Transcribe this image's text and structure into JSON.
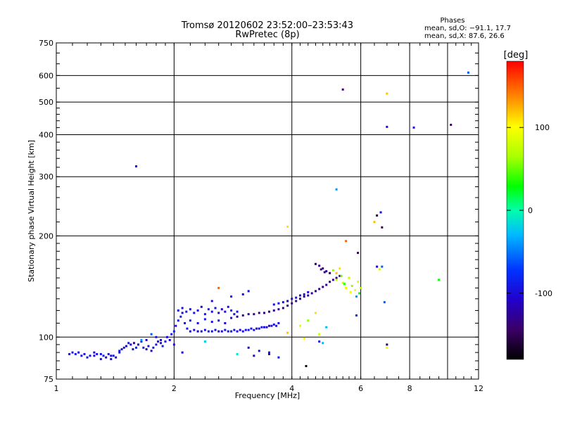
{
  "header": {
    "title_line1": "Tromsø 20120602 23:52:00–23:53:43",
    "title_line2": "RwPretec (8p)",
    "phases_title": "Phases",
    "phases_line1": "mean, sd,O: −91.1, 17.7",
    "phases_line2": "mean, sd,X:  87.6, 26.6"
  },
  "colorbar": {
    "label": "[deg]",
    "ticks": [
      {
        "label": "100",
        "value": 100
      },
      {
        "label": "0",
        "value": 0
      },
      {
        "label": "-100",
        "value": -100
      }
    ],
    "range": [
      -180,
      180
    ]
  },
  "chart_data": {
    "type": "scatter",
    "xlabel": "Frequency [MHz]",
    "ylabel": "Stationary phase Virtual Height [km]",
    "xscale": "log",
    "yscale": "log",
    "xlim": [
      1,
      12
    ],
    "ylim": [
      75,
      750
    ],
    "xticks": [
      {
        "label": "1",
        "value": 1
      },
      {
        "label": "2",
        "value": 2
      },
      {
        "label": "4",
        "value": 4
      },
      {
        "label": "6",
        "value": 6
      },
      {
        "label": "8",
        "value": 8
      },
      {
        "label": "12",
        "value": 12
      }
    ],
    "xgrid": [
      2,
      4,
      6,
      8,
      10
    ],
    "yticks": [
      {
        "label": "75",
        "value": 75
      },
      {
        "label": "100",
        "value": 100
      },
      {
        "label": "200",
        "value": 200
      },
      {
        "label": "300",
        "value": 300
      },
      {
        "label": "400",
        "value": 400
      },
      {
        "label": "500",
        "value": 500
      },
      {
        "label": "600",
        "value": 600
      },
      {
        "label": "750",
        "value": 750
      }
    ],
    "grid": true,
    "color_by": "phase [deg]",
    "points": [
      [
        1.08,
        89,
        -95
      ],
      [
        1.1,
        90,
        -100
      ],
      [
        1.12,
        89,
        -90
      ],
      [
        1.14,
        90,
        -105
      ],
      [
        1.16,
        88,
        -95
      ],
      [
        1.18,
        89,
        -100
      ],
      [
        1.2,
        87,
        -90
      ],
      [
        1.22,
        88,
        -95
      ],
      [
        1.25,
        90,
        -110
      ],
      [
        1.27,
        89,
        -100
      ],
      [
        1.3,
        86,
        -95
      ],
      [
        1.32,
        88,
        -90
      ],
      [
        1.34,
        87,
        -105
      ],
      [
        1.36,
        89,
        -95
      ],
      [
        1.38,
        86,
        -100
      ],
      [
        1.4,
        88,
        -90
      ],
      [
        1.42,
        87,
        -95
      ],
      [
        1.45,
        91,
        -85
      ],
      [
        1.47,
        92,
        -100
      ],
      [
        1.49,
        93,
        -95
      ],
      [
        1.51,
        94,
        -110
      ],
      [
        1.53,
        96,
        -90
      ],
      [
        1.55,
        95,
        -100
      ],
      [
        1.57,
        92,
        -95
      ],
      [
        1.6,
        93,
        -85
      ],
      [
        1.62,
        95,
        -100
      ],
      [
        1.65,
        97,
        -95
      ],
      [
        1.67,
        93,
        -90
      ],
      [
        1.7,
        92,
        -105
      ],
      [
        1.72,
        94,
        -95
      ],
      [
        1.75,
        91,
        -100
      ],
      [
        1.77,
        93,
        -90
      ],
      [
        1.8,
        95,
        -95
      ],
      [
        1.82,
        97,
        -105
      ],
      [
        1.85,
        96,
        -100
      ],
      [
        1.87,
        94,
        -90
      ],
      [
        1.9,
        97,
        -95
      ],
      [
        1.92,
        100,
        -100
      ],
      [
        1.95,
        98,
        -110
      ],
      [
        1.97,
        102,
        -95
      ],
      [
        2.0,
        104,
        -90
      ],
      [
        2.02,
        108,
        -100
      ],
      [
        2.05,
        112,
        -95
      ],
      [
        2.08,
        115,
        -85
      ],
      [
        2.1,
        118,
        -100
      ],
      [
        2.13,
        110,
        -95
      ],
      [
        2.16,
        106,
        -90
      ],
      [
        2.2,
        104,
        -100
      ],
      [
        2.25,
        105,
        -95
      ],
      [
        2.3,
        104,
        -110
      ],
      [
        2.35,
        104,
        -100
      ],
      [
        2.4,
        105,
        -95
      ],
      [
        2.45,
        104,
        -90
      ],
      [
        2.5,
        104,
        -100
      ],
      [
        2.55,
        105,
        -95
      ],
      [
        2.6,
        104,
        -105
      ],
      [
        2.65,
        104,
        -100
      ],
      [
        2.7,
        105,
        -95
      ],
      [
        2.75,
        104,
        -90
      ],
      [
        2.8,
        104,
        -100
      ],
      [
        2.85,
        105,
        -95
      ],
      [
        2.9,
        104,
        -100
      ],
      [
        2.95,
        105,
        -110
      ],
      [
        3.0,
        104,
        -100
      ],
      [
        3.05,
        105,
        -95
      ],
      [
        3.1,
        105,
        -90
      ],
      [
        3.15,
        106,
        -100
      ],
      [
        3.2,
        105,
        -95
      ],
      [
        3.25,
        106,
        -110
      ],
      [
        3.3,
        106,
        -100
      ],
      [
        3.35,
        107,
        -95
      ],
      [
        3.4,
        107,
        -100
      ],
      [
        3.45,
        107,
        -110
      ],
      [
        3.5,
        108,
        -100
      ],
      [
        3.55,
        108,
        -95
      ],
      [
        3.6,
        109,
        -100
      ],
      [
        3.65,
        108,
        -90
      ],
      [
        3.7,
        110,
        -100
      ],
      [
        2.05,
        120,
        -95
      ],
      [
        2.1,
        122,
        -100
      ],
      [
        2.15,
        119,
        -90
      ],
      [
        2.2,
        121,
        -100
      ],
      [
        2.25,
        118,
        -95
      ],
      [
        2.3,
        120,
        -105
      ],
      [
        2.35,
        123,
        -100
      ],
      [
        2.4,
        117,
        -95
      ],
      [
        2.45,
        121,
        -90
      ],
      [
        2.5,
        119,
        -100
      ],
      [
        2.55,
        122,
        -95
      ],
      [
        2.6,
        118,
        -100
      ],
      [
        2.65,
        121,
        -110
      ],
      [
        2.7,
        119,
        -100
      ],
      [
        2.75,
        123,
        -95
      ],
      [
        2.8,
        120,
        -90
      ],
      [
        2.85,
        117,
        -100
      ],
      [
        2.9,
        119,
        -95
      ],
      [
        2.2,
        112,
        -95
      ],
      [
        2.3,
        110,
        -100
      ],
      [
        2.4,
        113,
        -90
      ],
      [
        2.5,
        111,
        -100
      ],
      [
        2.6,
        112,
        -95
      ],
      [
        2.7,
        110,
        -105
      ],
      [
        2.8,
        114,
        -100
      ],
      [
        2.9,
        115,
        -130
      ],
      [
        3.0,
        116,
        -135
      ],
      [
        3.1,
        117,
        -130
      ],
      [
        3.2,
        117,
        -125
      ],
      [
        3.3,
        118,
        -130
      ],
      [
        3.4,
        118,
        -135
      ],
      [
        3.5,
        119,
        -130
      ],
      [
        3.6,
        120,
        -130
      ],
      [
        3.7,
        121,
        -125
      ],
      [
        3.8,
        122,
        -130
      ],
      [
        3.9,
        124,
        -130
      ],
      [
        4.0,
        126,
        -135
      ],
      [
        4.1,
        128,
        -130
      ],
      [
        4.2,
        130,
        -125
      ],
      [
        4.3,
        132,
        -130
      ],
      [
        4.4,
        133,
        -135
      ],
      [
        4.5,
        135,
        -130
      ],
      [
        4.6,
        137,
        -125
      ],
      [
        4.7,
        139,
        -130
      ],
      [
        4.8,
        141,
        -135
      ],
      [
        4.9,
        143,
        -130
      ],
      [
        5.0,
        146,
        -125
      ],
      [
        5.1,
        148,
        -130
      ],
      [
        5.2,
        150,
        -130
      ],
      [
        5.3,
        152,
        -135
      ],
      [
        3.6,
        125,
        -100
      ],
      [
        3.7,
        126,
        -95
      ],
      [
        3.8,
        127,
        -100
      ],
      [
        3.9,
        128,
        -110
      ],
      [
        4.0,
        130,
        -100
      ],
      [
        4.1,
        131,
        -95
      ],
      [
        4.2,
        133,
        -100
      ],
      [
        4.3,
        134,
        -90
      ],
      [
        4.4,
        136,
        -100
      ],
      [
        4.6,
        165,
        -140
      ],
      [
        4.7,
        163,
        -135
      ],
      [
        4.8,
        160,
        -140
      ],
      [
        4.9,
        157,
        -130
      ],
      [
        5.0,
        155,
        -140
      ],
      [
        4.75,
        159,
        -135
      ],
      [
        4.85,
        156,
        -130
      ],
      [
        5.1,
        158,
        60
      ],
      [
        5.2,
        148,
        70
      ],
      [
        5.35,
        152,
        50
      ],
      [
        5.4,
        145,
        80
      ],
      [
        5.5,
        140,
        90
      ],
      [
        5.6,
        150,
        75
      ],
      [
        5.7,
        142,
        60
      ],
      [
        5.8,
        138,
        100
      ],
      [
        5.9,
        146,
        85
      ],
      [
        6.0,
        140,
        70
      ],
      [
        5.85,
        132,
        -40
      ],
      [
        5.95,
        135,
        30
      ],
      [
        5.3,
        160,
        110
      ],
      [
        5.2,
        155,
        120
      ],
      [
        5.45,
        144,
        40
      ],
      [
        5.65,
        136,
        95
      ],
      [
        4.2,
        108,
        90
      ],
      [
        4.4,
        112,
        60
      ],
      [
        4.6,
        118,
        110
      ],
      [
        4.3,
        99,
        100
      ],
      [
        4.9,
        107,
        -30
      ],
      [
        4.7,
        102,
        80
      ],
      [
        3.9,
        103,
        120
      ],
      [
        2.6,
        140,
        150
      ],
      [
        2.8,
        132,
        -95
      ],
      [
        3.1,
        137,
        -100
      ],
      [
        3.0,
        134,
        -105
      ],
      [
        2.5,
        128,
        -100
      ],
      [
        1.25,
        88,
        -95
      ],
      [
        1.3,
        89,
        -90
      ],
      [
        1.38,
        88,
        -100
      ],
      [
        1.45,
        90,
        -95
      ],
      [
        1.58,
        96,
        -120
      ],
      [
        1.65,
        98,
        -40
      ],
      [
        1.75,
        102,
        -60
      ],
      [
        1.85,
        98,
        -100
      ],
      [
        2.4,
        97,
        -20
      ],
      [
        2.9,
        89,
        -10
      ],
      [
        3.1,
        93,
        -110
      ],
      [
        3.3,
        91,
        -95
      ],
      [
        3.5,
        89,
        -140
      ],
      [
        3.7,
        87,
        -90
      ],
      [
        1.7,
        98,
        -110
      ],
      [
        1.8,
        100,
        -95
      ],
      [
        2.0,
        95,
        -100
      ],
      [
        2.1,
        90,
        -105
      ],
      [
        1.6,
        322,
        -110
      ],
      [
        5.4,
        545,
        -140
      ],
      [
        7.0,
        530,
        120
      ],
      [
        7.0,
        422,
        -100
      ],
      [
        8.2,
        420,
        -100
      ],
      [
        10.2,
        428,
        -150
      ],
      [
        11.3,
        612,
        -60
      ],
      [
        5.2,
        275,
        -40
      ],
      [
        6.6,
        230,
        -160
      ],
      [
        6.75,
        235,
        -100
      ],
      [
        6.8,
        212,
        -150
      ],
      [
        3.9,
        213,
        110
      ],
      [
        6.5,
        220,
        120
      ],
      [
        5.5,
        193,
        150
      ],
      [
        5.9,
        178,
        -140
      ],
      [
        6.6,
        162,
        -110
      ],
      [
        6.7,
        159,
        80
      ],
      [
        6.8,
        162,
        -60
      ],
      [
        9.5,
        148,
        30
      ],
      [
        6.9,
        127,
        -60
      ],
      [
        7.0,
        95,
        -150
      ],
      [
        7.0,
        93,
        90
      ],
      [
        5.85,
        116,
        -80
      ],
      [
        4.35,
        82,
        -170
      ],
      [
        4.7,
        97,
        -90
      ],
      [
        4.8,
        96,
        -30
      ],
      [
        3.2,
        88,
        -110
      ],
      [
        3.5,
        90,
        -90
      ]
    ]
  }
}
